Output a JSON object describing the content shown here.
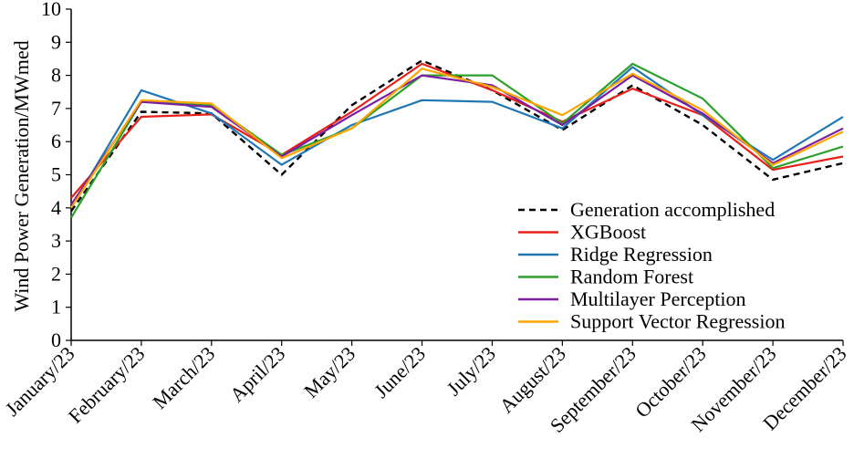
{
  "chart_data": {
    "type": "line",
    "title": "",
    "xlabel": "",
    "ylabel": "Wind Power Generation/MWmed",
    "ylim": [
      0,
      10
    ],
    "yticks": [
      0,
      1,
      2,
      3,
      4,
      5,
      6,
      7,
      8,
      9,
      10
    ],
    "grid": false,
    "legend_position": "bottom-right",
    "categories": [
      "January/23",
      "February/23",
      "March/23",
      "April/23",
      "May/23",
      "June/23",
      "July/23",
      "August/23",
      "September/23",
      "October/23",
      "November/23",
      "December/23"
    ],
    "series": [
      {
        "name": "Generation accomplished",
        "color": "#000000",
        "dash": true,
        "values": [
          3.9,
          6.9,
          6.85,
          5.0,
          7.1,
          8.45,
          7.55,
          6.35,
          7.7,
          6.5,
          4.85,
          5.35
        ]
      },
      {
        "name": "XGBoost",
        "color": "#e8201a",
        "dash": false,
        "values": [
          4.3,
          6.75,
          6.82,
          5.6,
          6.9,
          8.35,
          7.55,
          6.6,
          7.6,
          6.8,
          5.15,
          5.55
        ]
      },
      {
        "name": "Ridge Regression",
        "color": "#1f77b4",
        "dash": false,
        "values": [
          4.0,
          7.55,
          6.85,
          5.3,
          6.5,
          7.25,
          7.2,
          6.4,
          8.25,
          6.8,
          5.45,
          6.75
        ]
      },
      {
        "name": "Random Forest",
        "color": "#2ca02c",
        "dash": false,
        "values": [
          3.7,
          7.2,
          7.1,
          5.6,
          6.4,
          8.0,
          8.0,
          6.55,
          8.35,
          7.3,
          5.2,
          5.85
        ]
      },
      {
        "name": "Multilayer Perception",
        "color": "#7a1fa2",
        "dash": false,
        "values": [
          4.1,
          7.2,
          7.05,
          5.55,
          6.8,
          8.0,
          7.7,
          6.5,
          8.0,
          6.85,
          5.35,
          6.4
        ]
      },
      {
        "name": "Support Vector Regression",
        "color": "#ffa500",
        "dash": false,
        "values": [
          4.0,
          7.25,
          7.15,
          5.5,
          6.4,
          8.2,
          7.65,
          6.8,
          8.05,
          6.95,
          5.3,
          6.3
        ]
      }
    ]
  }
}
